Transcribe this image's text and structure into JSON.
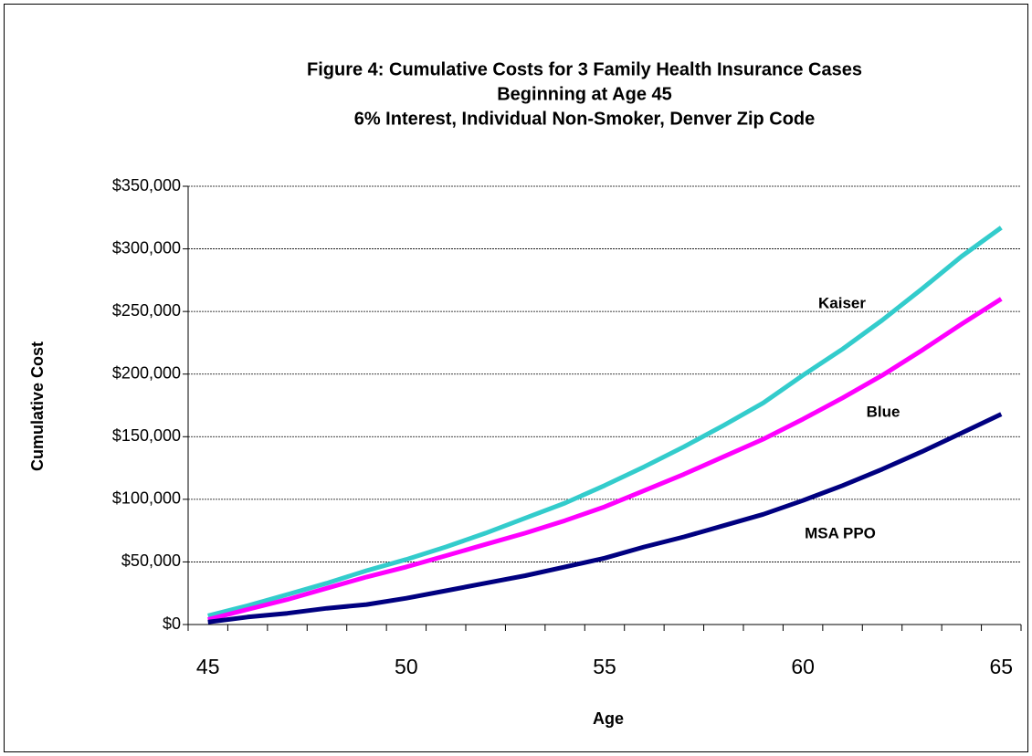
{
  "chart_data": {
    "type": "line",
    "title": "Figure 4:  Cumulative Costs for 3 Family Health Insurance Cases",
    "subtitle": [
      "Beginning at Age 45",
      "6% Interest, Individual Non-Smoker, Denver Zip Code"
    ],
    "x_label": "Age",
    "y_label": "Cumulative Cost",
    "categories": [
      "45",
      null,
      null,
      null,
      null,
      "50",
      null,
      null,
      null,
      null,
      "55",
      null,
      null,
      null,
      null,
      "60",
      null,
      null,
      null,
      null,
      "65"
    ],
    "series": [
      {
        "name": "Kaiser",
        "color": "#33cccc",
        "values": [
          7000,
          15000,
          24000,
          33000,
          43000,
          52000,
          62000,
          73000,
          85000,
          97000,
          111000,
          126000,
          142000,
          159000,
          177000,
          199000,
          220000,
          243000,
          268000,
          294000,
          317000
        ]
      },
      {
        "name": "Blue",
        "color": "#ff00ff",
        "values": [
          4000,
          12000,
          20000,
          29000,
          38000,
          46000,
          55000,
          64000,
          73000,
          83000,
          94000,
          107000,
          120000,
          134000,
          148000,
          164000,
          181000,
          199000,
          219000,
          240000,
          260000
        ]
      },
      {
        "name": "MSA PPO",
        "color": "#000080",
        "values": [
          2000,
          6000,
          9000,
          13000,
          16000,
          21000,
          27000,
          33000,
          39000,
          46000,
          53000,
          62000,
          70000,
          79000,
          88000,
          99000,
          111000,
          124000,
          138000,
          153000,
          168000
        ]
      }
    ],
    "ylim": [
      0,
      350000
    ],
    "yticks": [
      {
        "value": 0,
        "label": "$0"
      },
      {
        "value": 50000,
        "label": "$50,000"
      },
      {
        "value": 100000,
        "label": "$100,000"
      },
      {
        "value": 150000,
        "label": "$150,000"
      },
      {
        "value": 200000,
        "label": "$200,000"
      },
      {
        "value": 250000,
        "label": "$250,000"
      },
      {
        "value": 300000,
        "label": "$300,000"
      },
      {
        "value": 350000,
        "label": "$350,000"
      }
    ],
    "grid": true
  }
}
